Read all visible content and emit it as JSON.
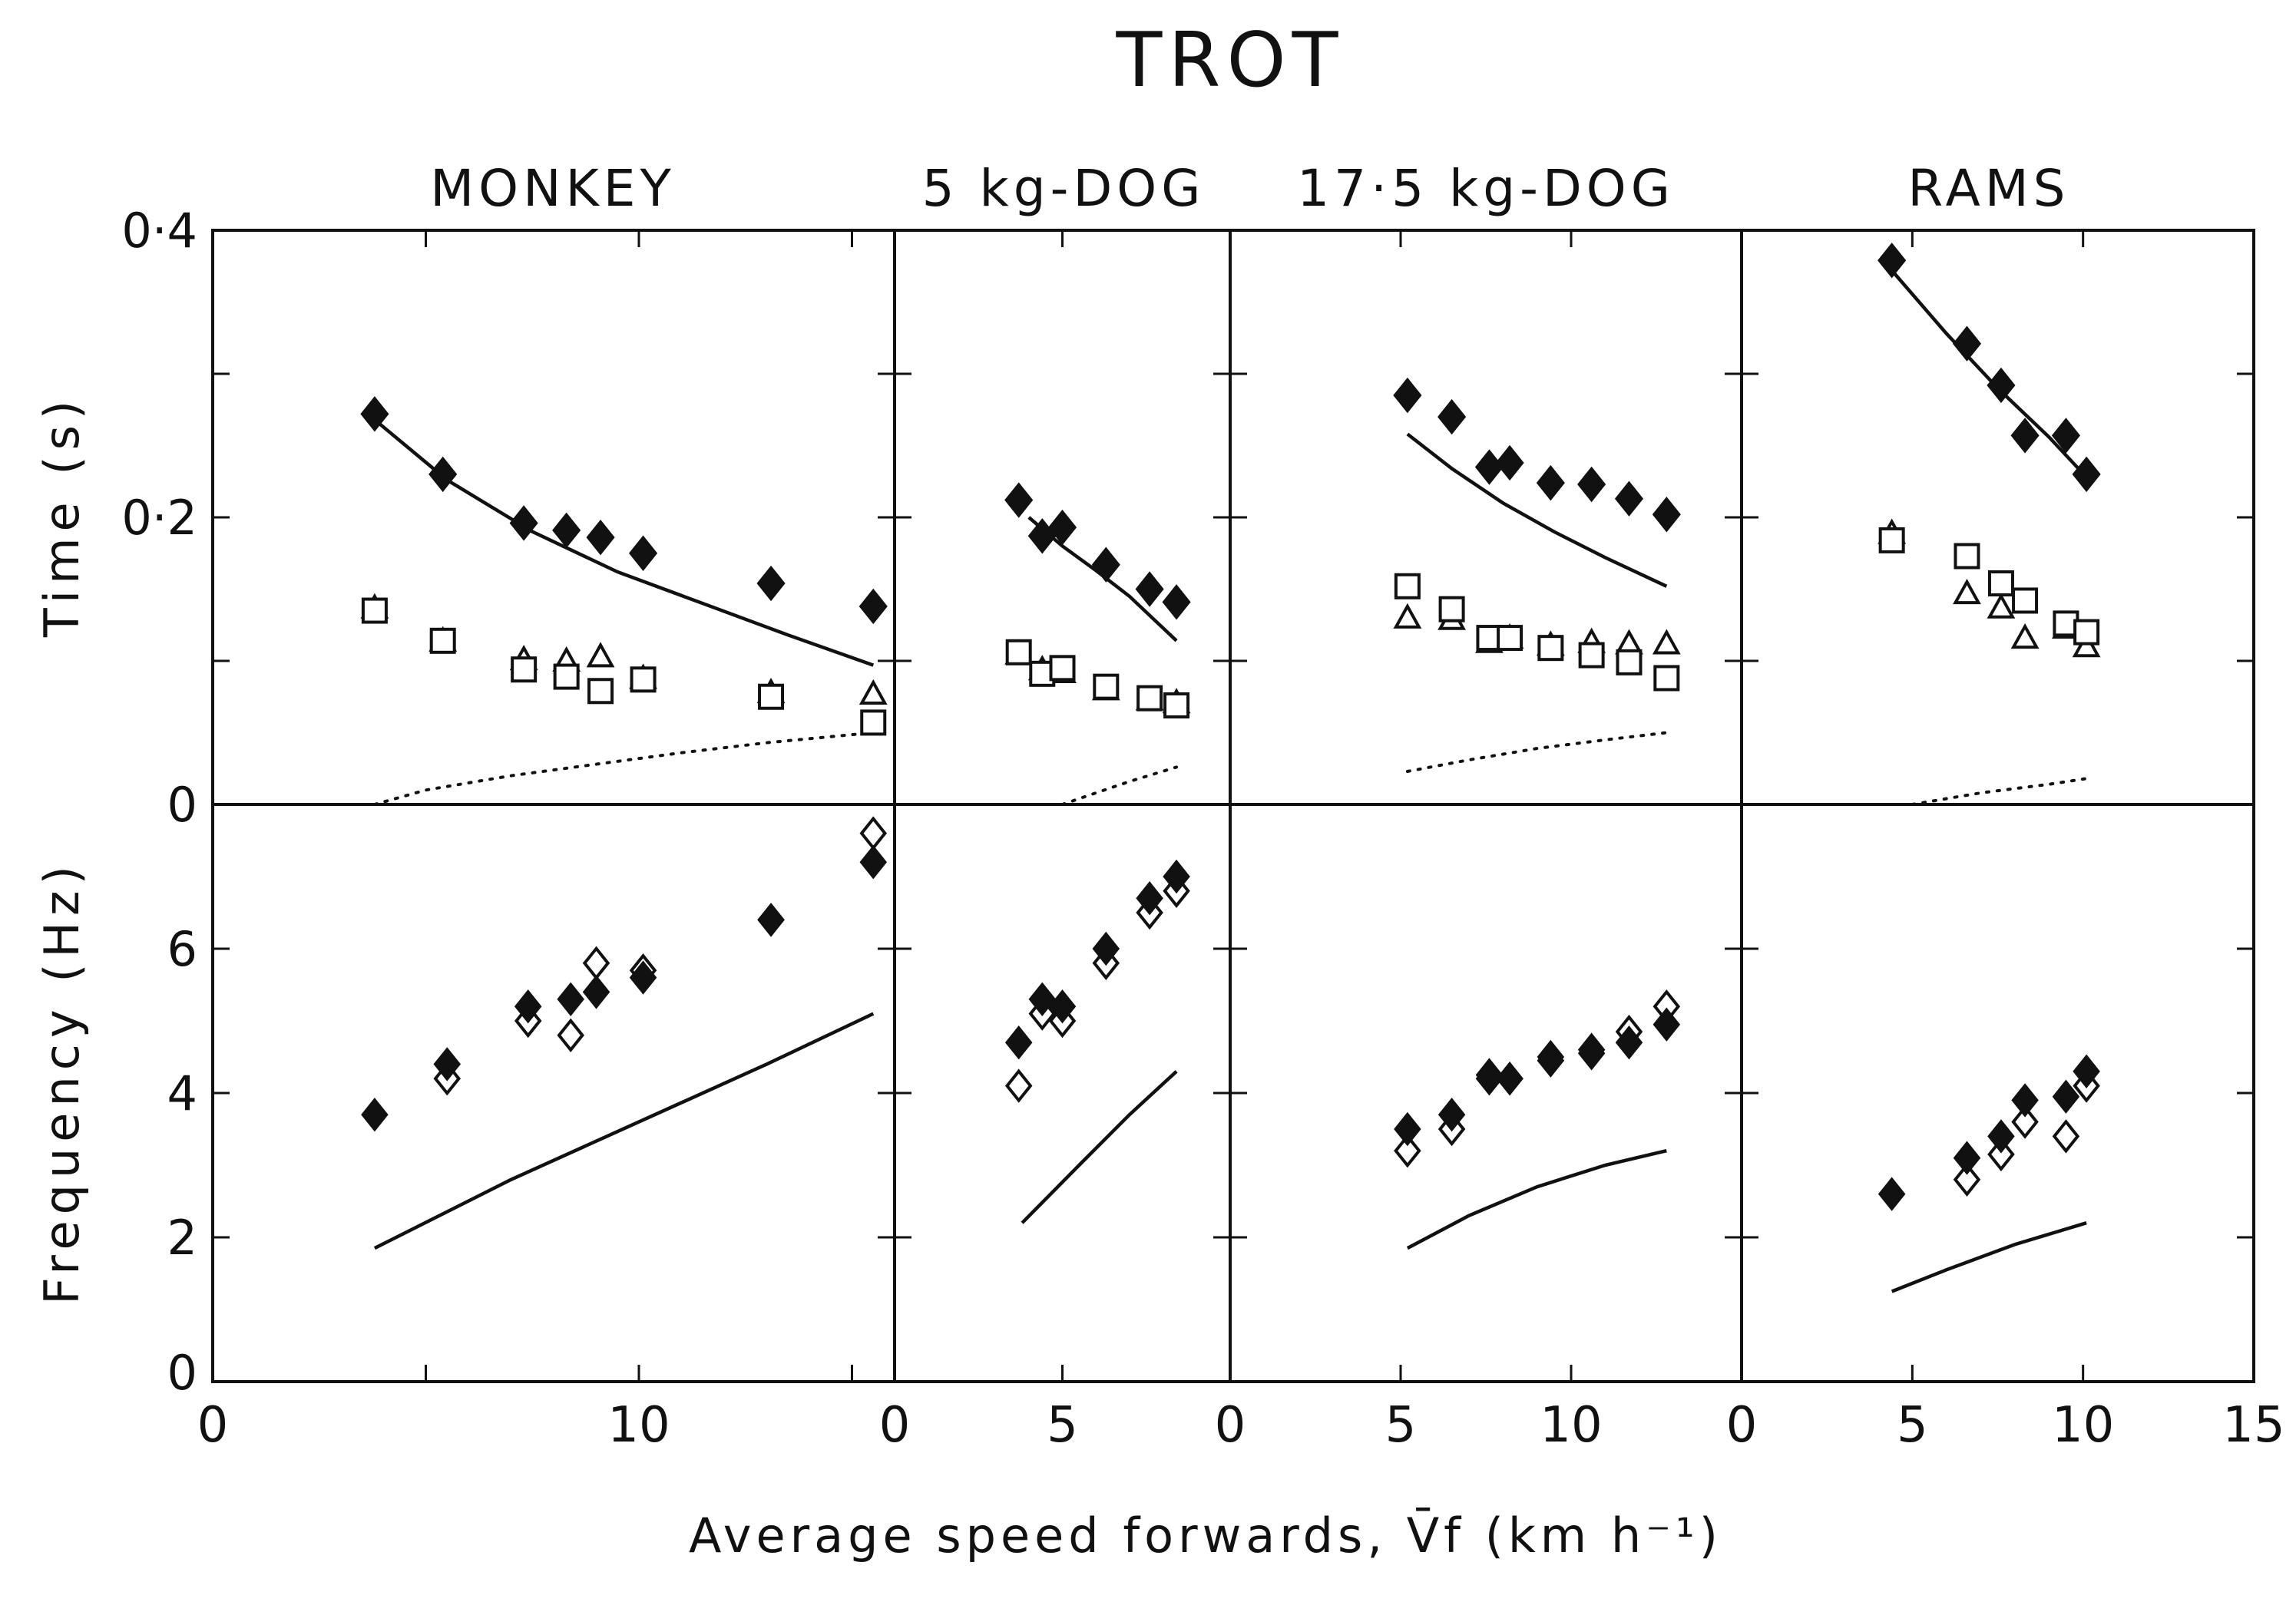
{
  "chart_data": {
    "type": "scatter",
    "title": "TROT",
    "xlabel": "Average speed forwards, V̄f (km h⁻¹)",
    "ylabel_top": "Time (s)",
    "ylabel_bottom": "Frequency (Hz)",
    "top_y_ticks": [
      {
        "value": 0.4,
        "label": "0·4"
      },
      {
        "value": 0.2,
        "label": "0·2"
      },
      {
        "value": 0,
        "label": "0"
      }
    ],
    "bottom_y_ticks": [
      {
        "value": 6,
        "label": "6"
      },
      {
        "value": 4,
        "label": "4"
      },
      {
        "value": 2,
        "label": "2"
      },
      {
        "value": 0,
        "label": "0"
      }
    ],
    "top_ylim": [
      0,
      0.4
    ],
    "bottom_ylim": [
      0,
      8
    ],
    "panels": [
      {
        "name": "MONKEY",
        "xlim": [
          0,
          16
        ],
        "x_ticks": [
          {
            "value": 0,
            "label": "0"
          },
          {
            "value": 10,
            "label": "10"
          }
        ],
        "minor_ticks": [
          5,
          15
        ],
        "time": {
          "filled_diamond": [
            [
              3.8,
              0.272
            ],
            [
              5.4,
              0.23
            ],
            [
              7.3,
              0.196
            ],
            [
              8.3,
              0.191
            ],
            [
              9.1,
              0.186
            ],
            [
              10.1,
              0.175
            ],
            [
              13.1,
              0.154
            ],
            [
              15.5,
              0.138
            ]
          ],
          "open_square": [
            [
              3.8,
              0.135
            ],
            [
              5.4,
              0.114
            ],
            [
              7.3,
              0.094
            ],
            [
              8.3,
              0.089
            ],
            [
              9.1,
              0.079
            ],
            [
              10.1,
              0.087
            ],
            [
              13.1,
              0.075
            ],
            [
              15.5,
              0.057
            ]
          ],
          "open_triangle": [
            [
              3.8,
              0.137
            ],
            [
              5.4,
              0.114
            ],
            [
              7.3,
              0.101
            ],
            [
              8.3,
              0.1
            ],
            [
              9.1,
              0.103
            ],
            [
              10.1,
              0.088
            ],
            [
              13.1,
              0.078
            ],
            [
              15.5,
              0.077
            ]
          ],
          "curve_solid": [
            [
              3.8,
              0.268
            ],
            [
              5.5,
              0.226
            ],
            [
              7.5,
              0.19
            ],
            [
              9.5,
              0.162
            ],
            [
              11.5,
              0.14
            ],
            [
              13.5,
              0.118
            ],
            [
              15.5,
              0.097
            ]
          ],
          "curve_dotted": [
            [
              3.8,
              0.0
            ],
            [
              5,
              0.01
            ],
            [
              7,
              0.02
            ],
            [
              9,
              0.028
            ],
            [
              11,
              0.036
            ],
            [
              13,
              0.043
            ],
            [
              15.5,
              0.05
            ]
          ]
        },
        "frequency": {
          "filled_diamond": [
            [
              3.8,
              3.7
            ],
            [
              5.5,
              4.4
            ],
            [
              7.4,
              5.2
            ],
            [
              8.4,
              5.3
            ],
            [
              9.0,
              5.4
            ],
            [
              10.1,
              5.6
            ],
            [
              13.1,
              6.4
            ],
            [
              15.5,
              7.2
            ]
          ],
          "open_diamond": [
            [
              5.5,
              4.2
            ],
            [
              7.4,
              5.0
            ],
            [
              8.4,
              4.8
            ],
            [
              9.0,
              5.8
            ],
            [
              10.1,
              5.7
            ],
            [
              13.1,
              6.4
            ],
            [
              15.5,
              7.6
            ]
          ],
          "curve_solid": [
            [
              3.8,
              1.85
            ],
            [
              7,
              2.8
            ],
            [
              10,
              3.6
            ],
            [
              13,
              4.4
            ],
            [
              15.5,
              5.1
            ]
          ]
        }
      },
      {
        "name": "5 kg-DOG",
        "xlim": [
          0,
          10
        ],
        "x_ticks": [
          {
            "value": 0,
            "label": "0"
          },
          {
            "value": 5,
            "label": "5"
          }
        ],
        "minor_ticks": [],
        "time": {
          "filled_diamond": [
            [
              3.7,
              0.212
            ],
            [
              4.4,
              0.187
            ],
            [
              5.0,
              0.193
            ],
            [
              6.3,
              0.167
            ],
            [
              7.6,
              0.15
            ],
            [
              8.4,
              0.141
            ]
          ],
          "open_square": [
            [
              3.7,
              0.106
            ],
            [
              4.4,
              0.091
            ],
            [
              5.0,
              0.095
            ],
            [
              6.3,
              0.082
            ],
            [
              7.6,
              0.074
            ],
            [
              8.4,
              0.069
            ]
          ],
          "open_triangle": [
            [
              3.7,
              0.105
            ],
            [
              4.4,
              0.094
            ],
            [
              5.0,
              0.092
            ],
            [
              6.3,
              0.08
            ],
            [
              7.6,
              0.073
            ],
            [
              8.4,
              0.071
            ]
          ],
          "curve_solid": [
            [
              4.0,
              0.2
            ],
            [
              5.0,
              0.18
            ],
            [
              6.0,
              0.163
            ],
            [
              7.0,
              0.145
            ],
            [
              8.4,
              0.114
            ]
          ],
          "curve_dotted": [
            [
              5.0,
              0.0
            ],
            [
              6.0,
              0.008
            ],
            [
              7.0,
              0.016
            ],
            [
              8.4,
              0.026
            ]
          ]
        },
        "frequency": {
          "filled_diamond": [
            [
              3.7,
              4.7
            ],
            [
              4.4,
              5.3
            ],
            [
              5.0,
              5.2
            ],
            [
              6.3,
              6.0
            ],
            [
              7.6,
              6.7
            ],
            [
              8.4,
              7.0
            ]
          ],
          "open_diamond": [
            [
              3.7,
              4.1
            ],
            [
              4.4,
              5.1
            ],
            [
              5.0,
              5.0
            ],
            [
              6.3,
              5.8
            ],
            [
              7.6,
              6.5
            ],
            [
              8.4,
              6.8
            ]
          ],
          "curve_solid": [
            [
              3.8,
              2.2
            ],
            [
              5.5,
              3.0
            ],
            [
              7.0,
              3.7
            ],
            [
              8.4,
              4.3
            ]
          ]
        }
      },
      {
        "name": "17·5 kg-DOG",
        "xlim": [
          0,
          15
        ],
        "x_ticks": [
          {
            "value": 0,
            "label": "0"
          },
          {
            "value": 5,
            "label": "5"
          },
          {
            "value": 10,
            "label": "10"
          }
        ],
        "minor_ticks": [],
        "time": {
          "filled_diamond": [
            [
              5.2,
              0.285
            ],
            [
              6.5,
              0.27
            ],
            [
              7.6,
              0.235
            ],
            [
              8.2,
              0.238
            ],
            [
              9.4,
              0.224
            ],
            [
              10.6,
              0.223
            ],
            [
              11.7,
              0.213
            ],
            [
              12.8,
              0.202
            ]
          ],
          "open_square": [
            [
              5.2,
              0.152
            ],
            [
              6.5,
              0.136
            ],
            [
              7.6,
              0.116
            ],
            [
              8.2,
              0.116
            ],
            [
              9.4,
              0.109
            ],
            [
              10.6,
              0.104
            ],
            [
              11.7,
              0.099
            ],
            [
              12.8,
              0.088
            ]
          ],
          "open_triangle": [
            [
              5.2,
              0.13
            ],
            [
              6.5,
              0.129
            ],
            [
              7.6,
              0.113
            ],
            [
              8.2,
              0.116
            ],
            [
              9.4,
              0.111
            ],
            [
              10.6,
              0.113
            ],
            [
              11.7,
              0.112
            ],
            [
              12.8,
              0.112
            ]
          ],
          "curve_solid": [
            [
              5.2,
              0.258
            ],
            [
              6.5,
              0.234
            ],
            [
              8.0,
              0.21
            ],
            [
              9.5,
              0.19
            ],
            [
              11.0,
              0.172
            ],
            [
              12.8,
              0.152
            ]
          ],
          "curve_dotted": [
            [
              5.2,
              0.023
            ],
            [
              7.0,
              0.031
            ],
            [
              9.0,
              0.039
            ],
            [
              11.0,
              0.045
            ],
            [
              12.8,
              0.05
            ]
          ]
        },
        "frequency": {
          "filled_diamond": [
            [
              5.2,
              3.5
            ],
            [
              6.5,
              3.7
            ],
            [
              7.6,
              4.25
            ],
            [
              8.2,
              4.2
            ],
            [
              9.4,
              4.45
            ],
            [
              10.6,
              4.55
            ],
            [
              11.7,
              4.7
            ],
            [
              12.8,
              4.95
            ]
          ],
          "open_diamond": [
            [
              5.2,
              3.2
            ],
            [
              6.5,
              3.5
            ],
            [
              7.6,
              4.2
            ],
            [
              8.2,
              4.2
            ],
            [
              9.4,
              4.5
            ],
            [
              10.6,
              4.6
            ],
            [
              11.7,
              4.85
            ],
            [
              12.8,
              5.2
            ]
          ],
          "curve_solid": [
            [
              5.2,
              1.85
            ],
            [
              7.0,
              2.3
            ],
            [
              9.0,
              2.7
            ],
            [
              11.0,
              3.0
            ],
            [
              12.8,
              3.2
            ]
          ]
        }
      },
      {
        "name": "RAMS",
        "xlim": [
          0,
          15
        ],
        "x_ticks": [
          {
            "value": 0,
            "label": "0"
          },
          {
            "value": 5,
            "label": "5"
          },
          {
            "value": 10,
            "label": "10"
          },
          {
            "value": 15,
            "label": "15"
          }
        ],
        "minor_ticks": [],
        "time": {
          "filled_diamond": [
            [
              4.4,
              0.379
            ],
            [
              6.6,
              0.321
            ],
            [
              7.6,
              0.292
            ],
            [
              8.3,
              0.257
            ],
            [
              9.5,
              0.257
            ],
            [
              10.1,
              0.23
            ]
          ],
          "open_square": [
            [
              4.4,
              0.184
            ],
            [
              6.6,
              0.173
            ],
            [
              7.6,
              0.154
            ],
            [
              8.3,
              0.142
            ],
            [
              9.5,
              0.126
            ],
            [
              10.1,
              0.12
            ]
          ],
          "open_triangle": [
            [
              4.4,
              0.189
            ],
            [
              6.6,
              0.147
            ],
            [
              7.6,
              0.137
            ],
            [
              8.3,
              0.116
            ],
            [
              9.5,
              0.123
            ],
            [
              10.1,
              0.11
            ]
          ],
          "curve_solid": [
            [
              4.4,
              0.372
            ],
            [
              6.0,
              0.328
            ],
            [
              7.5,
              0.29
            ],
            [
              9.0,
              0.256
            ],
            [
              10.1,
              0.228
            ]
          ],
          "curve_dotted": [
            [
              5.0,
              0.0
            ],
            [
              7.0,
              0.008
            ],
            [
              9.0,
              0.014
            ],
            [
              10.1,
              0.018
            ]
          ]
        },
        "frequency": {
          "filled_diamond": [
            [
              4.4,
              2.6
            ],
            [
              6.6,
              3.1
            ],
            [
              7.6,
              3.4
            ],
            [
              8.3,
              3.9
            ],
            [
              9.5,
              3.95
            ],
            [
              10.1,
              4.3
            ]
          ],
          "open_diamond": [
            [
              6.6,
              2.8
            ],
            [
              7.6,
              3.15
            ],
            [
              8.3,
              3.6
            ],
            [
              9.5,
              3.4
            ],
            [
              10.1,
              4.1
            ]
          ],
          "curve_solid": [
            [
              4.4,
              1.25
            ],
            [
              6.0,
              1.55
            ],
            [
              8.0,
              1.9
            ],
            [
              10.1,
              2.2
            ]
          ]
        }
      }
    ]
  }
}
